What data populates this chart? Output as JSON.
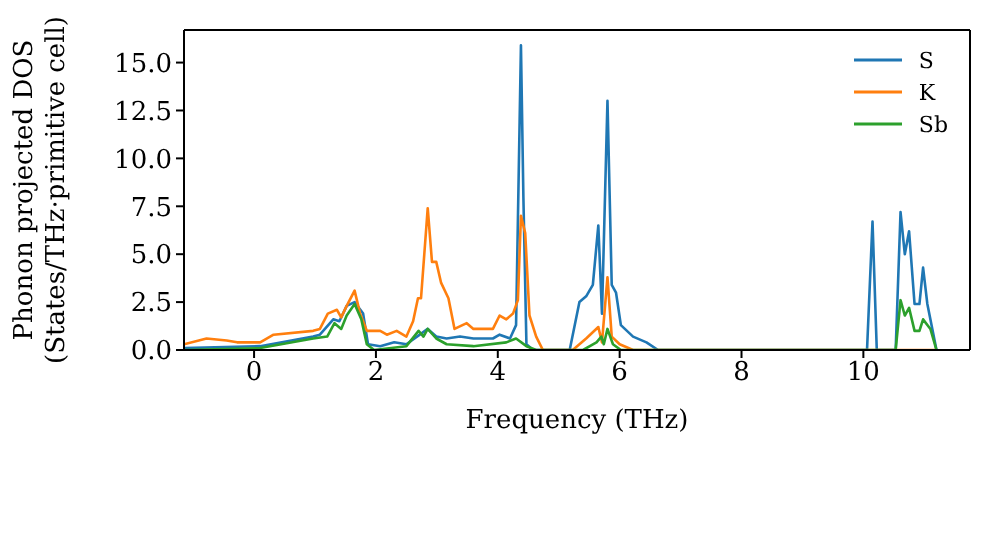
{
  "chart_data": {
    "type": "line",
    "xlabel": "Frequency (THz)",
    "ylabel": "Phonon projected DOS\n(States/THz·primitive cell)",
    "xlim": [
      -1.15,
      11.75
    ],
    "ylim": [
      0,
      16.7
    ],
    "xticks": [
      0,
      2,
      4,
      6,
      8,
      10
    ],
    "yticks": [
      {
        "value": 0,
        "label": "0.0"
      },
      {
        "value": 2.5,
        "label": "2.5"
      },
      {
        "value": 5,
        "label": "5.0"
      },
      {
        "value": 7.5,
        "label": "7.5"
      },
      {
        "value": 10,
        "label": "10.0"
      },
      {
        "value": 12.5,
        "label": "12.5"
      },
      {
        "value": 15,
        "label": "15.0"
      }
    ],
    "legend": "top right",
    "marker": "none",
    "line_style": "solid",
    "series": [
      {
        "name": "S",
        "color": "#1f77b4",
        "x": [
          -1.15,
          0.1,
          0.97,
          1.08,
          1.3,
          1.4,
          1.52,
          1.65,
          1.79,
          1.87,
          2.07,
          2.3,
          2.5,
          2.72,
          2.85,
          2.99,
          3.16,
          3.38,
          3.6,
          3.92,
          4.03,
          4.2,
          4.3,
          4.38,
          4.42,
          4.47,
          4.58,
          5.18,
          5.34,
          5.45,
          5.56,
          5.65,
          5.71,
          5.8,
          5.87,
          5.94,
          6.02,
          6.22,
          6.44,
          6.63,
          10.06,
          10.15,
          10.22,
          10.53,
          10.61,
          10.68,
          10.75,
          10.84,
          10.92,
          10.98,
          11.05,
          11.2
        ],
        "values": [
          0.1,
          0.2,
          0.7,
          0.8,
          1.6,
          1.5,
          2.3,
          2.5,
          1.9,
          0.3,
          0.2,
          0.4,
          0.3,
          0.8,
          1.1,
          0.7,
          0.6,
          0.7,
          0.6,
          0.6,
          0.8,
          0.6,
          1.3,
          15.9,
          8,
          0.3,
          0,
          0,
          2.5,
          2.8,
          3.4,
          6.5,
          1.9,
          13,
          3.4,
          3,
          1.3,
          0.7,
          0.4,
          0,
          0,
          6.7,
          0,
          0,
          7.2,
          5,
          6.2,
          2.4,
          2.4,
          4.3,
          2.4,
          0
        ]
      },
      {
        "name": "K",
        "color": "#ff7f0e",
        "x": [
          -1.15,
          -0.78,
          -0.45,
          -0.28,
          0.1,
          0.32,
          0.97,
          1.08,
          1.21,
          1.36,
          1.43,
          1.52,
          1.65,
          1.74,
          1.85,
          2.07,
          2.18,
          2.34,
          2.5,
          2.61,
          2.69,
          2.74,
          2.85,
          2.92,
          2.99,
          3.07,
          3.19,
          3.29,
          3.49,
          3.6,
          3.92,
          4.03,
          4.14,
          4.25,
          4.33,
          4.38,
          4.45,
          4.52,
          4.63,
          4.74,
          5.23,
          5.45,
          5.65,
          5.71,
          5.8,
          5.87,
          6,
          6.22,
          11.2
        ],
        "values": [
          0.3,
          0.6,
          0.5,
          0.4,
          0.4,
          0.8,
          1,
          1.1,
          1.9,
          2.1,
          1.7,
          2.3,
          3.1,
          1.9,
          1,
          1,
          0.8,
          1,
          0.7,
          1.5,
          2.7,
          2.7,
          7.4,
          4.6,
          4.6,
          3.5,
          2.7,
          1.1,
          1.4,
          1.1,
          1.1,
          1.8,
          1.6,
          1.9,
          2.6,
          7,
          6.1,
          1.8,
          0.7,
          0,
          0,
          0.6,
          1.2,
          0.4,
          3.8,
          0.7,
          0.3,
          0,
          0
        ]
      },
      {
        "name": "Sb",
        "color": "#2ca02c",
        "x": [
          -1.15,
          0.1,
          0.97,
          1.2,
          1.32,
          1.43,
          1.52,
          1.65,
          1.76,
          1.85,
          1.97,
          2.5,
          2.7,
          2.78,
          2.85,
          2.99,
          3.16,
          3.6,
          4.14,
          4.3,
          4.47,
          4.63,
          5.4,
          5.62,
          5.7,
          5.74,
          5.8,
          5.89,
          6.02,
          10.53,
          10.61,
          10.68,
          10.75,
          10.84,
          10.92,
          10.98,
          11.1,
          11.2
        ],
        "values": [
          0,
          0.1,
          0.6,
          0.7,
          1.4,
          1.1,
          1.8,
          2.4,
          1.6,
          0.3,
          0,
          0.2,
          1,
          0.7,
          1.1,
          0.6,
          0.3,
          0.2,
          0.4,
          0.6,
          0.2,
          0,
          0,
          0.4,
          0.7,
          0.3,
          1.1,
          0.3,
          0,
          0,
          2.6,
          1.8,
          2.2,
          1,
          1,
          1.6,
          1.1,
          0
        ]
      }
    ]
  }
}
